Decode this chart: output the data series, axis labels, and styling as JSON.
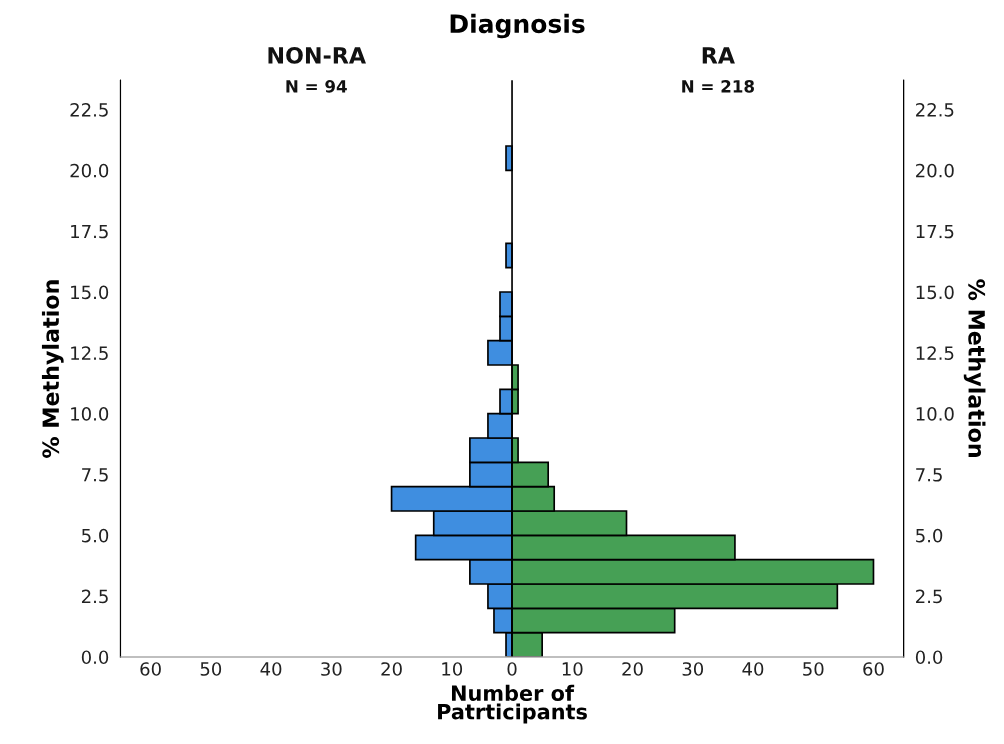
{
  "chart_data": {
    "type": "histogram",
    "orientation": "horizontal",
    "title": "Diagnosis",
    "xlabel": "Number of\nPatrticipants",
    "ylabel": "% Methylation",
    "y2label": "% Methylation",
    "bins": [
      0,
      1,
      2,
      3,
      4,
      5,
      6,
      7,
      8,
      9,
      10,
      11,
      12,
      13,
      14,
      15,
      16,
      17,
      18,
      19,
      20,
      21
    ],
    "series": [
      {
        "color": "#3f8ee0",
        "values": [
          -1,
          -3,
          -4,
          -7,
          -16,
          -13,
          -20,
          -7,
          -7,
          -4,
          -2,
          0,
          -4,
          -2,
          -2,
          0,
          -1,
          0,
          0,
          0,
          -1
        ]
      },
      {
        "color": "#46a055",
        "values": [
          5,
          27,
          54,
          60,
          37,
          19,
          7,
          6,
          1,
          0,
          1,
          1,
          0,
          0,
          0,
          0,
          0,
          0,
          0,
          0,
          0
        ]
      }
    ],
    "annotations": [
      "NON-RA",
      "RA",
      "N = 94",
      "N = 218"
    ],
    "xlim": [
      -65,
      65
    ],
    "xticks": [
      {
        "value": -60,
        "label": "60"
      },
      {
        "value": -50,
        "label": "50"
      },
      {
        "value": -40,
        "label": "40"
      },
      {
        "value": -30,
        "label": "30"
      },
      {
        "value": -20,
        "label": "20"
      },
      {
        "value": -10,
        "label": "10"
      },
      0,
      10,
      20,
      30,
      40,
      50,
      60
    ],
    "ylim": [
      0,
      23.7
    ],
    "yticks": [
      {
        "value": 0,
        "label": "0.0"
      },
      {
        "value": 2.5,
        "label": "2.5"
      },
      {
        "value": 5,
        "label": "5.0"
      },
      {
        "value": 7.5,
        "label": "7.5"
      },
      {
        "value": 10,
        "label": "10.0"
      },
      {
        "value": 12.5,
        "label": "12.5"
      },
      {
        "value": 15,
        "label": "15.0"
      },
      {
        "value": 17.5,
        "label": "17.5"
      },
      {
        "value": 20,
        "label": "20.0"
      },
      {
        "value": 22.5,
        "label": "22.5"
      }
    ],
    "y2lim": [
      0,
      23.7
    ],
    "y2ticks": [
      {
        "value": 0,
        "label": "0.0"
      },
      {
        "value": 2.5,
        "label": "2.5"
      },
      {
        "value": 5,
        "label": "5.0"
      },
      {
        "value": 7.5,
        "label": "7.5"
      },
      {
        "value": 10,
        "label": "10.0"
      },
      {
        "value": 12.5,
        "label": "12.5"
      },
      {
        "value": 15,
        "label": "15.0"
      },
      {
        "value": 17.5,
        "label": "17.5"
      },
      {
        "value": 20,
        "label": "20.0"
      },
      {
        "value": 22.5,
        "label": "22.5"
      }
    ],
    "ref_lines": [
      {
        "axis": "x",
        "value": 0,
        "color": "#000000"
      }
    ],
    "grid": false,
    "legend": false
  }
}
